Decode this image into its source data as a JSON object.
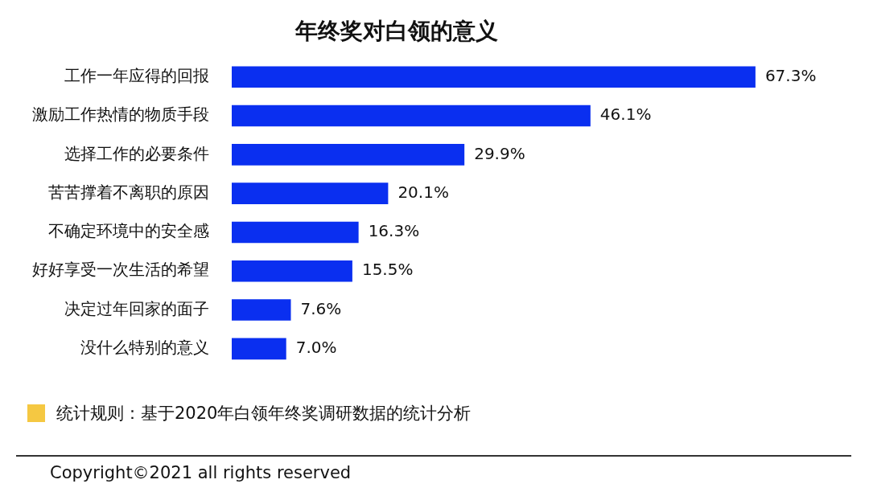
{
  "chart_data": {
    "type": "bar",
    "orientation": "horizontal",
    "title": "年终奖对白领的意义",
    "categories": [
      "工作一年应得的回报",
      "激励工作热情的物质手段",
      "选择工作的必要条件",
      "苦苦撑着不离职的原因",
      "不确定环境中的安全感",
      "好好享受一次生活的希望",
      "决定过年回家的面子",
      "没什么特别的意义"
    ],
    "values": [
      67.3,
      46.1,
      29.9,
      20.1,
      16.3,
      15.5,
      7.6,
      7.0
    ],
    "value_labels": [
      "67.3%",
      "46.1%",
      "29.9%",
      "20.1%",
      "16.3%",
      "15.5%",
      "7.6%",
      "7.0%"
    ],
    "color": "#0a2ff0",
    "annotations": [
      "统计规则：基于2020年白领年终奖调研数据的统计分析",
      "Copyright©2021 all rights reserved"
    ]
  }
}
